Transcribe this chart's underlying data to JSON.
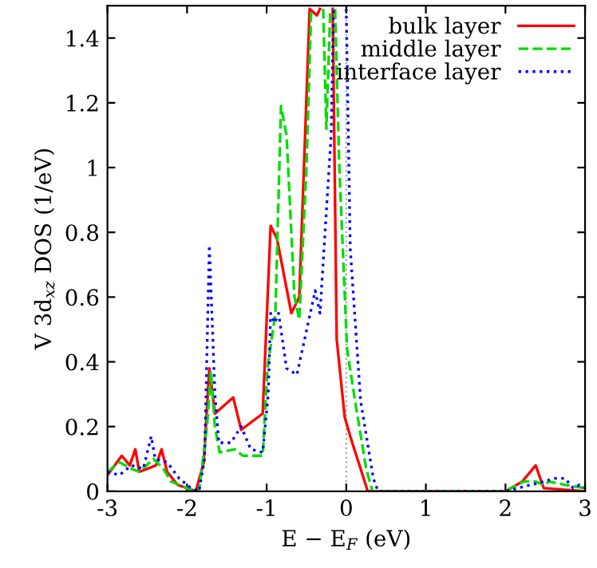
{
  "chart_data": {
    "type": "line",
    "xlabel": "E − E$_{F}$ (eV)",
    "ylabel": "V 3d$_{xz}$ DOS (1/eV)",
    "xlim": [
      -3,
      3
    ],
    "ylim": [
      0,
      1.5
    ],
    "xticks": [
      -3,
      -2,
      -1,
      0,
      1,
      2,
      3
    ],
    "yticks": [
      0,
      0.2,
      0.4,
      0.6,
      0.8,
      1,
      1.2,
      1.4
    ],
    "legend": "top right",
    "grid": false,
    "marker": "none",
    "ref_lines": [
      {
        "axis": "x",
        "value": 0,
        "color": "#aaaaaa",
        "line_style": "dotted"
      }
    ],
    "series": [
      {
        "name": "bulk layer",
        "color": "#ff0000",
        "line_style": "solid",
        "x": [
          -3,
          -2.82,
          -2.72,
          -2.65,
          -2.6,
          -2.39,
          -2.32,
          -2.25,
          -2.12,
          -1.89,
          -1.79,
          -1.72,
          -1.65,
          -1.42,
          -1.32,
          -1.05,
          -0.95,
          -0.87,
          -0.69,
          -0.59,
          -0.46,
          -0.37,
          -0.33,
          -0.25,
          -0.17,
          -0.12,
          -0.02,
          0.05,
          0.18,
          0.27,
          2.0,
          2.21,
          2.38,
          2.48,
          3
        ],
        "values": [
          0.05,
          0.11,
          0.08,
          0.13,
          0.06,
          0.08,
          0.13,
          0.06,
          0.02,
          0,
          0.09,
          0.38,
          0.24,
          0.29,
          0.19,
          0.24,
          0.82,
          0.78,
          0.55,
          0.6,
          1.49,
          1.47,
          1.49,
          null,
          1.49,
          0.47,
          0.23,
          0.17,
          0.07,
          0,
          0,
          0.03,
          0.08,
          0.01,
          0
        ]
      },
      {
        "name": "middle layer",
        "color": "#00dd00",
        "line_style": "dashed",
        "x": [
          -3,
          -2.85,
          -2.7,
          -2.6,
          -2.42,
          -2.3,
          -2.2,
          -2.0,
          -1.85,
          -1.75,
          -1.7,
          -1.65,
          -1.59,
          -1.4,
          -1.3,
          -1.05,
          -0.99,
          -0.89,
          -0.82,
          -0.75,
          -0.65,
          -0.59,
          -0.5,
          -0.44,
          -0.35,
          -0.29,
          -0.25,
          -0.2,
          -0.18,
          -0.14,
          -0.09,
          0.01,
          0.11,
          0.25,
          0.33,
          2.0,
          2.23,
          2.38,
          2.48,
          2.55,
          2.75,
          3
        ],
        "values": [
          0.06,
          0.09,
          0.07,
          0.06,
          0.1,
          0.07,
          0.03,
          0.01,
          0,
          0.2,
          0.37,
          0.2,
          0.12,
          0.13,
          0.11,
          0.11,
          0.38,
          0.55,
          1.19,
          1.1,
          0.6,
          0.53,
          1.0,
          1.49,
          null,
          1.49,
          1.12,
          1.49,
          null,
          1.49,
          1.02,
          0.44,
          0.28,
          0.07,
          0,
          0,
          0.03,
          0.03,
          0.02,
          0.03,
          0.02,
          0.01
        ]
      },
      {
        "name": "interface layer",
        "color": "#0000ff",
        "line_style": "dotted",
        "x": [
          -3,
          -2.85,
          -2.7,
          -2.55,
          -2.45,
          -2.4,
          -2.25,
          -2.1,
          -1.95,
          -1.85,
          -1.78,
          -1.72,
          -1.65,
          -1.6,
          -1.45,
          -1.32,
          -1.2,
          -1.05,
          -0.98,
          -0.95,
          -0.9,
          -0.85,
          -0.75,
          -0.62,
          -0.39,
          -0.33,
          -0.19,
          -0.16,
          -0.08,
          0.0,
          0.05,
          0.18,
          0.34,
          0.4,
          2.0,
          2.48,
          2.61,
          2.75,
          2.85,
          2.93,
          3
        ],
        "values": [
          0.06,
          0.05,
          0.08,
          0.07,
          0.17,
          0.1,
          0.09,
          0.04,
          0.01,
          0,
          0.1,
          0.76,
          0.3,
          0.15,
          0.15,
          0.2,
          0.13,
          0.12,
          0.3,
          0.55,
          0.52,
          0.55,
          0.38,
          0.36,
          0.62,
          0.55,
          1.1,
          1.49,
          null,
          1.49,
          0.75,
          0.28,
          0.04,
          0,
          0,
          0.03,
          0.04,
          0.04,
          0.01,
          0.02,
          0.01
        ]
      }
    ]
  }
}
